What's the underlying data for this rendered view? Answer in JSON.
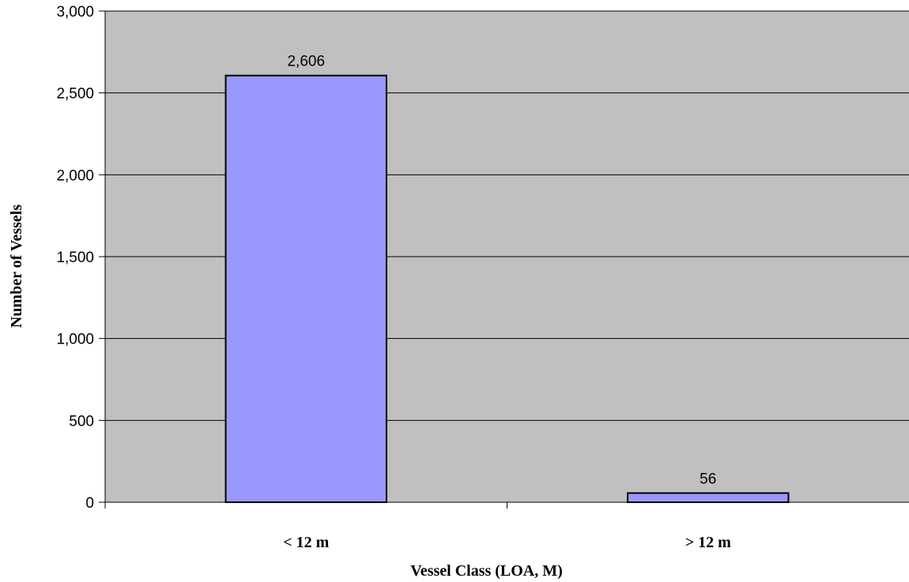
{
  "chart_data": {
    "type": "bar",
    "title": "",
    "xlabel": "Vessel Class (LOA, M)",
    "ylabel": "Number of Vessels",
    "categories": [
      "< 12 m",
      "> 12 m"
    ],
    "values": [
      2606,
      56
    ],
    "data_labels": [
      "2,606",
      "56"
    ],
    "ylim": [
      0,
      3000
    ],
    "yticks": [
      0,
      500,
      1000,
      1500,
      2000,
      2500,
      3000
    ],
    "ytick_labels": [
      "0",
      "500",
      "1,000",
      "1,500",
      "2,000",
      "2,500",
      "3,000"
    ],
    "grid": true,
    "legend": "none",
    "colors": {
      "plot_background": "#c0c0c0",
      "bar_fill": "#9999ff",
      "bar_stroke": "#000000",
      "gridline": "#000000"
    }
  }
}
